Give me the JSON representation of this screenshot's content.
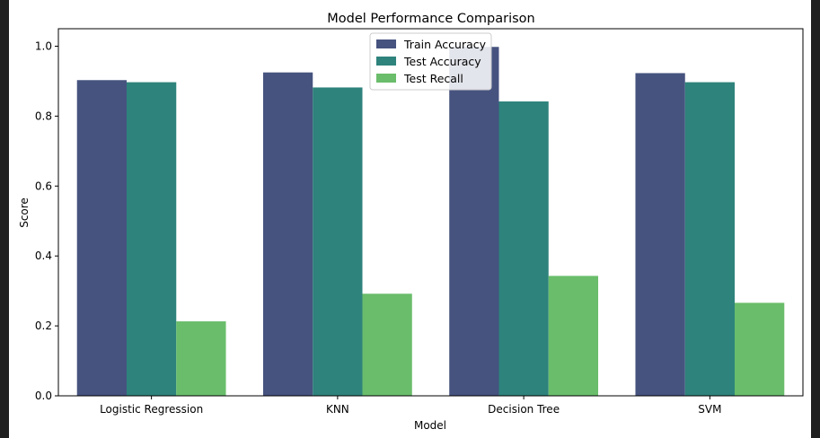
{
  "chart_data": {
    "type": "bar",
    "title": "Model Performance Comparison",
    "xlabel": "Model",
    "ylabel": "Score",
    "ylim": [
      0,
      1.05
    ],
    "yticks": [
      "0.0",
      "0.2",
      "0.4",
      "0.6",
      "0.8",
      "1.0"
    ],
    "categories": [
      "Logistic Regression",
      "KNN",
      "Decision Tree",
      "SVM"
    ],
    "series": [
      {
        "name": "Train Accuracy",
        "color": "#46537f",
        "values": [
          0.903,
          0.925,
          0.998,
          0.923
        ]
      },
      {
        "name": "Test Accuracy",
        "color": "#2e837c",
        "values": [
          0.897,
          0.882,
          0.842,
          0.897
        ]
      },
      {
        "name": "Test Recall",
        "color": "#6abd6b",
        "values": [
          0.213,
          0.292,
          0.343,
          0.266
        ]
      }
    ],
    "legend_position": "top-center",
    "grid": false
  }
}
